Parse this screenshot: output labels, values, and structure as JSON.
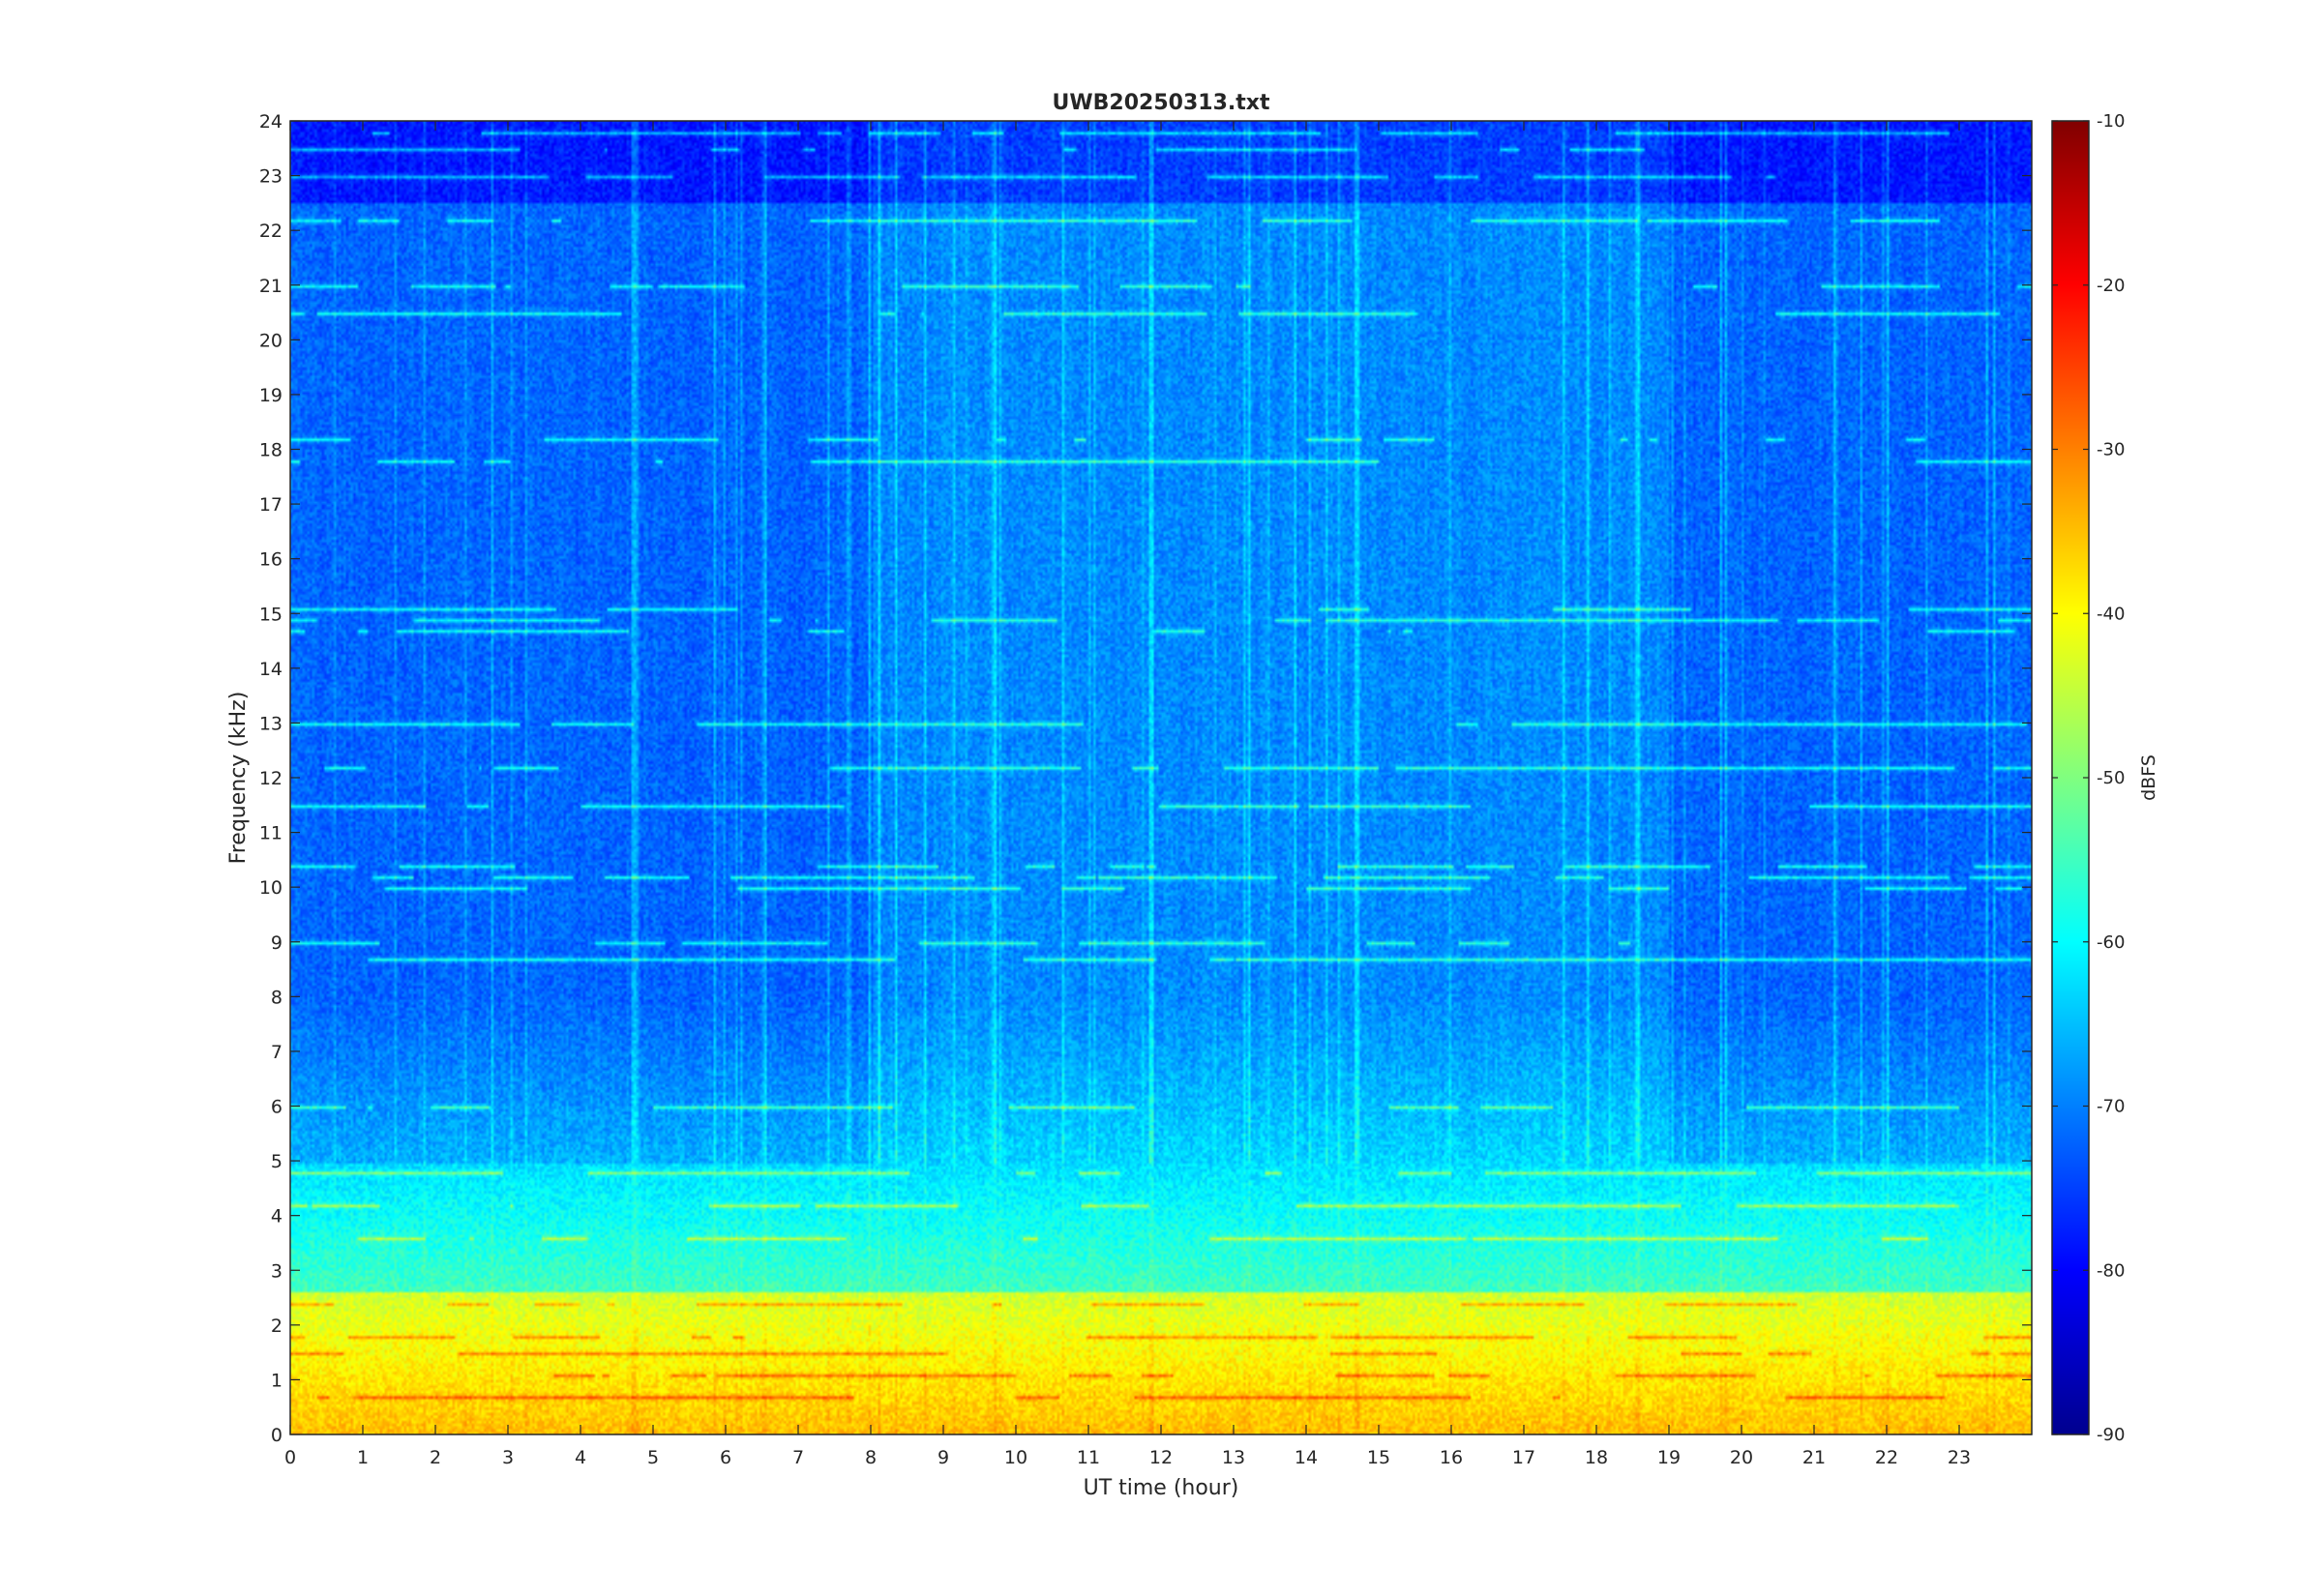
{
  "chart_data": {
    "type": "heatmap",
    "title": "UWB20250313.txt",
    "xlabel": "UT time (hour)",
    "ylabel": "Frequency (kHz)",
    "xlim": [
      0,
      24
    ],
    "ylim": [
      0,
      24
    ],
    "x_ticks": [
      "0",
      "1",
      "2",
      "3",
      "4",
      "5",
      "6",
      "7",
      "8",
      "9",
      "10",
      "11",
      "12",
      "13",
      "14",
      "15",
      "16",
      "17",
      "18",
      "19",
      "20",
      "21",
      "22",
      "23"
    ],
    "y_ticks": [
      "0",
      "1",
      "2",
      "3",
      "4",
      "5",
      "6",
      "7",
      "8",
      "9",
      "10",
      "11",
      "12",
      "13",
      "14",
      "15",
      "16",
      "17",
      "18",
      "19",
      "20",
      "21",
      "22",
      "23",
      "24"
    ],
    "colorbar": {
      "label": "dBFS",
      "clim": [
        -90,
        -10
      ],
      "ticks": [
        "-90",
        "-80",
        "-70",
        "-60",
        "-50",
        "-40",
        "-30",
        "-20",
        "-10"
      ],
      "colormap": "jet"
    },
    "grid": false,
    "spectral_features": {
      "strong_band_khz": [
        0,
        2.6
      ],
      "strongest_level_dbfs": -35,
      "mid_band_khz": [
        2.6,
        5
      ],
      "mid_level_dbfs": -55,
      "background_level_dbfs": -73,
      "tonal_lines_khz": [
        0.7,
        1.1,
        1.5,
        1.8,
        2.4,
        3.6,
        4.2,
        4.8,
        6.0,
        8.7,
        9.0,
        10.0,
        10.2,
        10.4,
        11.5,
        12.2,
        13.0,
        14.7,
        14.9,
        15.1,
        17.8,
        18.2,
        20.5,
        21.0,
        22.2,
        23.0,
        23.5,
        23.8
      ]
    }
  }
}
